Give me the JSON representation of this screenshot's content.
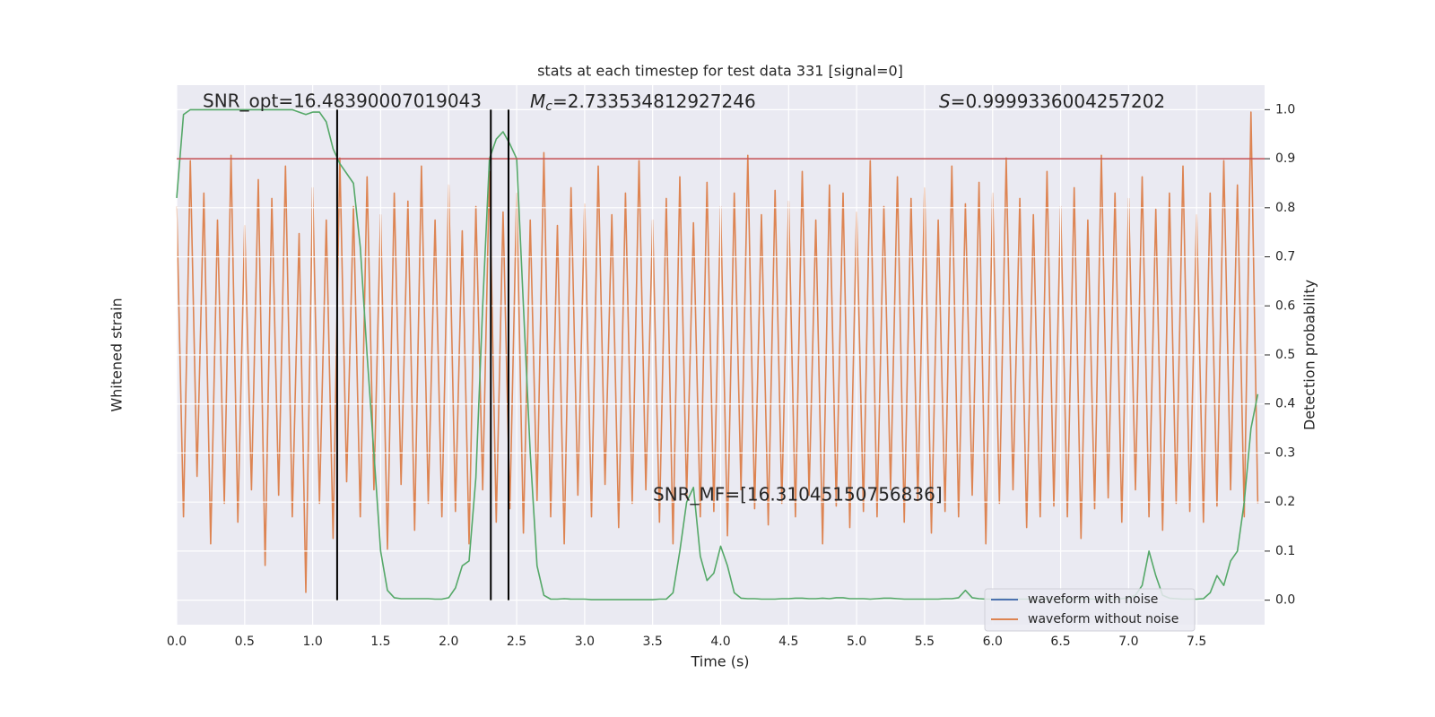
{
  "chart_data": {
    "type": "line",
    "title": "stats at each timestep for test data 331 [signal=0]",
    "xlabel": "Time (s)",
    "ylabel": "Whitened strain",
    "y2label": "Detection probability",
    "xlim": [
      0,
      8
    ],
    "xticks": [
      {
        "value": 0,
        "label": "0.0"
      },
      0.5,
      {
        "value": 1,
        "label": "1.0"
      },
      1.5,
      {
        "value": 2,
        "label": "2.0"
      },
      2.5,
      {
        "value": 3,
        "label": "3.0"
      },
      3.5,
      {
        "value": 4,
        "label": "4.0"
      },
      4.5,
      {
        "value": 5,
        "label": "5.0"
      },
      5.5,
      {
        "value": 6,
        "label": "6.0"
      },
      6.5,
      {
        "value": 7,
        "label": "7.0"
      },
      7.5
    ],
    "ylim": [
      -1,
      1
    ],
    "y2lim": [
      -0.05,
      1.05
    ],
    "y2ticks": [
      {
        "value": 0,
        "label": "0.0"
      },
      0.1,
      0.2,
      0.3,
      0.4,
      0.5,
      0.6,
      0.7,
      0.8,
      0.9,
      {
        "value": 1,
        "label": "1.0"
      }
    ],
    "grid": true,
    "legend": "lower right",
    "x": [
      0,
      0.05,
      0.1,
      0.15,
      0.2,
      0.25,
      0.3,
      0.35,
      0.4,
      0.45,
      0.5,
      0.55,
      0.6,
      0.65,
      0.7,
      0.75,
      0.8,
      0.85,
      0.9,
      0.95,
      1,
      1.05,
      1.1,
      1.15,
      1.2,
      1.25,
      1.3,
      1.35,
      1.4,
      1.45,
      1.5,
      1.55,
      1.6,
      1.65,
      1.7,
      1.75,
      1.8,
      1.85,
      1.9,
      1.95,
      2,
      2.05,
      2.1,
      2.15,
      2.2,
      2.25,
      2.3,
      2.35,
      2.4,
      2.45,
      2.5,
      2.55,
      2.6,
      2.65,
      2.7,
      2.75,
      2.8,
      2.85,
      2.9,
      2.95,
      3,
      3.05,
      3.1,
      3.15,
      3.2,
      3.25,
      3.3,
      3.35,
      3.4,
      3.45,
      3.5,
      3.55,
      3.6,
      3.65,
      3.7,
      3.75,
      3.8,
      3.85,
      3.9,
      3.95,
      4,
      4.05,
      4.1,
      4.15,
      4.2,
      4.25,
      4.3,
      4.35,
      4.4,
      4.45,
      4.5,
      4.55,
      4.6,
      4.65,
      4.7,
      4.75,
      4.8,
      4.85,
      4.9,
      4.95,
      5,
      5.05,
      5.1,
      5.15,
      5.2,
      5.25,
      5.3,
      5.35,
      5.4,
      5.45,
      5.5,
      5.55,
      5.6,
      5.65,
      5.7,
      5.75,
      5.8,
      5.85,
      5.9,
      5.95,
      6,
      6.05,
      6.1,
      6.15,
      6.2,
      6.25,
      6.3,
      6.35,
      6.4,
      6.45,
      6.5,
      6.55,
      6.6,
      6.65,
      6.7,
      6.75,
      6.8,
      6.85,
      6.9,
      6.95,
      7,
      7.05,
      7.1,
      7.15,
      7.2,
      7.25,
      7.3,
      7.35,
      7.4,
      7.45,
      7.5,
      7.55,
      7.6,
      7.65,
      7.7,
      7.75,
      7.8,
      7.85,
      7.9,
      7.95
    ],
    "series": [
      {
        "name": "waveform with noise",
        "color": "#4c72b0"
      },
      {
        "name": "waveform without noise",
        "color": "#dd8452",
        "values": [
          0.55,
          -0.6,
          0.72,
          -0.45,
          0.6,
          -0.7,
          0.5,
          -0.55,
          0.74,
          -0.62,
          0.48,
          -0.5,
          0.65,
          -0.78,
          0.58,
          -0.52,
          0.7,
          -0.6,
          0.45,
          -0.88,
          0.62,
          -0.55,
          0.5,
          -0.68,
          0.73,
          -0.47,
          0.55,
          -0.6,
          0.66,
          -0.5,
          0.52,
          -0.72,
          0.6,
          -0.48,
          0.57,
          -0.65,
          0.7,
          -0.55,
          0.5,
          -0.6,
          0.63,
          -0.58,
          0.46,
          -0.7,
          0.55,
          -0.5,
          0.68,
          -0.62,
          0.53,
          -0.57,
          0.6,
          -0.66,
          0.5,
          -0.54,
          0.75,
          -0.6,
          0.48,
          -0.7,
          0.62,
          -0.52,
          0.56,
          -0.6,
          0.7,
          -0.48,
          0.52,
          -0.64,
          0.6,
          -0.55,
          0.72,
          -0.5,
          0.5,
          -0.62,
          0.58,
          -0.7,
          0.66,
          -0.53,
          0.49,
          -0.6,
          0.64,
          -0.58,
          0.55,
          -0.67,
          0.6,
          -0.5,
          0.74,
          -0.57,
          0.52,
          -0.63,
          0.61,
          -0.55,
          0.57,
          -0.6,
          0.68,
          -0.52,
          0.5,
          -0.7,
          0.63,
          -0.56,
          0.6,
          -0.64,
          0.53,
          -0.58,
          0.72,
          -0.6,
          0.55,
          -0.5,
          0.66,
          -0.62,
          0.58,
          -0.54,
          0.62,
          -0.66,
          0.5,
          -0.58,
          0.7,
          -0.6,
          0.56,
          -0.52,
          0.64,
          -0.7,
          0.6,
          -0.55,
          0.73,
          -0.5,
          0.58,
          -0.64,
          0.52,
          -0.6,
          0.68,
          -0.56,
          0.55,
          -0.6,
          0.62,
          -0.68,
          0.5,
          -0.57,
          0.74,
          -0.53,
          0.6,
          -0.62,
          0.58,
          -0.5,
          0.66,
          -0.6,
          0.54,
          -0.65,
          0.6,
          -0.55,
          0.7,
          -0.58,
          0.52,
          -0.62,
          0.6,
          -0.56,
          0.72,
          -0.5,
          0.63,
          -0.6,
          0.9,
          -0.55
        ]
      },
      {
        "color": "#55a868",
        "axis": "y2",
        "values": [
          0.82,
          0.99,
          1.0,
          1.0,
          1.0,
          1.0,
          1.0,
          1.0,
          1.0,
          1.0,
          1.0,
          1.0,
          1.0,
          1.0,
          1.0,
          1.0,
          1.0,
          1.0,
          0.995,
          0.99,
          0.995,
          0.995,
          0.975,
          0.92,
          0.89,
          0.87,
          0.85,
          0.72,
          0.5,
          0.3,
          0.1,
          0.02,
          0.005,
          0.003,
          0.003,
          0.003,
          0.003,
          0.003,
          0.002,
          0.002,
          0.005,
          0.025,
          0.07,
          0.08,
          0.25,
          0.6,
          0.9,
          0.94,
          0.955,
          0.93,
          0.9,
          0.6,
          0.3,
          0.07,
          0.01,
          0.002,
          0.002,
          0.003,
          0.002,
          0.002,
          0.002,
          0.001,
          0.001,
          0.001,
          0.001,
          0.001,
          0.001,
          0.001,
          0.001,
          0.001,
          0.001,
          0.002,
          0.002,
          0.015,
          0.1,
          0.2,
          0.23,
          0.09,
          0.04,
          0.055,
          0.11,
          0.07,
          0.015,
          0.004,
          0.003,
          0.003,
          0.002,
          0.002,
          0.002,
          0.003,
          0.003,
          0.004,
          0.004,
          0.003,
          0.003,
          0.004,
          0.003,
          0.005,
          0.005,
          0.003,
          0.003,
          0.003,
          0.002,
          0.003,
          0.004,
          0.004,
          0.003,
          0.002,
          0.002,
          0.002,
          0.002,
          0.002,
          0.002,
          0.003,
          0.003,
          0.005,
          0.02,
          0.005,
          0.003,
          0.002,
          0.002,
          0.003,
          0.003,
          0.002,
          0.002,
          0.002,
          0.002,
          0.002,
          0.002,
          0.002,
          0.002,
          0.002,
          0.003,
          0.003,
          0.002,
          0.002,
          0.002,
          0.002,
          0.002,
          0.003,
          0.005,
          0.01,
          0.03,
          0.1,
          0.05,
          0.01,
          0.004,
          0.003,
          0.002,
          0.002,
          0.002,
          0.003,
          0.015,
          0.05,
          0.03,
          0.08,
          0.1,
          0.2,
          0.35,
          0.42
        ]
      }
    ],
    "hline": {
      "value": 0.9,
      "color": "#c44e52",
      "axis": "y2"
    },
    "vlines": {
      "values": [
        1.18,
        2.31,
        2.44
      ],
      "color": "#000000"
    },
    "annotations": {
      "snr_opt": "SNR_opt=16.48390007019043",
      "mc_symbol": "M",
      "mc_subscript": "c",
      "mc_text": "=2.733534812927246",
      "s_symbol": "S",
      "s_text": "=0.9999336004257202",
      "snr_mf": "SNR_MF=[16.31045150756836]"
    }
  }
}
